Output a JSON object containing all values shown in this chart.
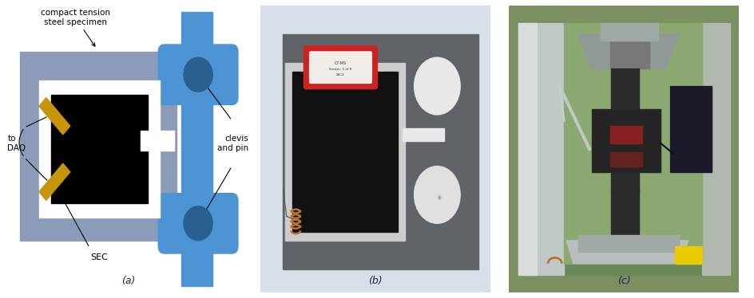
{
  "fig_width": 9.44,
  "fig_height": 3.74,
  "bg_color": "#ffffff",
  "label_a": "(a)",
  "label_b": "(b)",
  "label_c": "(c)",
  "label_fontsize": 9,
  "schematic": {
    "blue": "#4d94d4",
    "dark_blue_circle": "#2a6090",
    "gray": "#8c9cb8",
    "black": "#000000",
    "white": "#ffffff",
    "gold": "#c8950a",
    "text_color": "#000000"
  }
}
